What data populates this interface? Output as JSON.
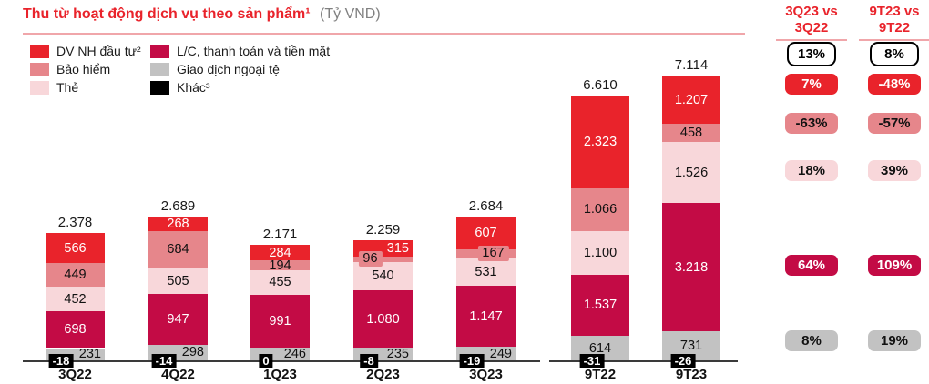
{
  "title": {
    "text": "Thu từ hoạt động dịch vụ theo sản phẩm¹",
    "unit": "(Tỷ VND)"
  },
  "colors": {
    "red": "#e9232b",
    "salmon": "#e6868b",
    "pink": "#f8d7da",
    "crimson": "#c30b45",
    "gray": "#c2c2c2",
    "black": "#000000",
    "title_red": "#e9232b",
    "unit_gray": "#808080",
    "divider_pink": "#f0a6aa",
    "axis": "#3a3a3a"
  },
  "legend": [
    {
      "key": "red",
      "label": "DV NH đầu tư²"
    },
    {
      "key": "salmon",
      "label": "Bảo hiểm"
    },
    {
      "key": "pink",
      "label": "Thẻ"
    },
    {
      "key": "crimson",
      "label": "L/C, thanh toán và tiền mặt"
    },
    {
      "key": "gray",
      "label": "Giao dịch ngoại tệ"
    },
    {
      "key": "black",
      "label": "Khác³"
    }
  ],
  "chart_data": {
    "type": "bar",
    "subtype": "stacked",
    "title": "Thu từ hoạt động dịch vụ theo sản phẩm",
    "unit": "Tỷ VND",
    "legend_position": "top-left",
    "grid": false,
    "categories": [
      "3Q22",
      "4Q22",
      "1Q23",
      "2Q23",
      "3Q23",
      "9T22",
      "9T23"
    ],
    "series": [
      {
        "name": "DV NH đầu tư",
        "key": "red",
        "values": [
          566,
          268,
          284,
          315,
          607,
          2323,
          1207
        ]
      },
      {
        "name": "Bảo hiểm",
        "key": "salmon",
        "values": [
          449,
          684,
          194,
          96,
          167,
          1066,
          458
        ]
      },
      {
        "name": "Thẻ",
        "key": "pink",
        "values": [
          452,
          505,
          455,
          540,
          531,
          1100,
          1526
        ]
      },
      {
        "name": "L/C, thanh toán và tiền mặt",
        "key": "crimson",
        "values": [
          698,
          947,
          991,
          1080,
          1147,
          1537,
          3218
        ]
      },
      {
        "name": "Giao dịch ngoại tệ",
        "key": "gray",
        "values": [
          231,
          298,
          246,
          235,
          249,
          614,
          731
        ]
      },
      {
        "name": "Khác",
        "key": "black",
        "values": [
          -18,
          -14,
          0,
          -8,
          -19,
          -31,
          -26
        ]
      }
    ],
    "totals": [
      2378,
      2689,
      2171,
      2259,
      2684,
      6610,
      7114
    ]
  },
  "comparison": {
    "columns": [
      {
        "header": [
          "3Q23 vs",
          "3Q22"
        ],
        "badges": [
          {
            "label": "13%",
            "key": "total"
          },
          {
            "label": "7%",
            "key": "red"
          },
          {
            "label": "-63%",
            "key": "salmon"
          },
          {
            "label": "18%",
            "key": "pink"
          },
          {
            "label": "64%",
            "key": "crimson"
          },
          {
            "label": "8%",
            "key": "gray"
          }
        ]
      },
      {
        "header": [
          "9T23 vs",
          "9T22"
        ],
        "badges": [
          {
            "label": "8%",
            "key": "total"
          },
          {
            "label": "-48%",
            "key": "red"
          },
          {
            "label": "-57%",
            "key": "salmon"
          },
          {
            "label": "39%",
            "key": "pink"
          },
          {
            "label": "109%",
            "key": "crimson"
          },
          {
            "label": "19%",
            "key": "gray"
          }
        ]
      }
    ]
  }
}
